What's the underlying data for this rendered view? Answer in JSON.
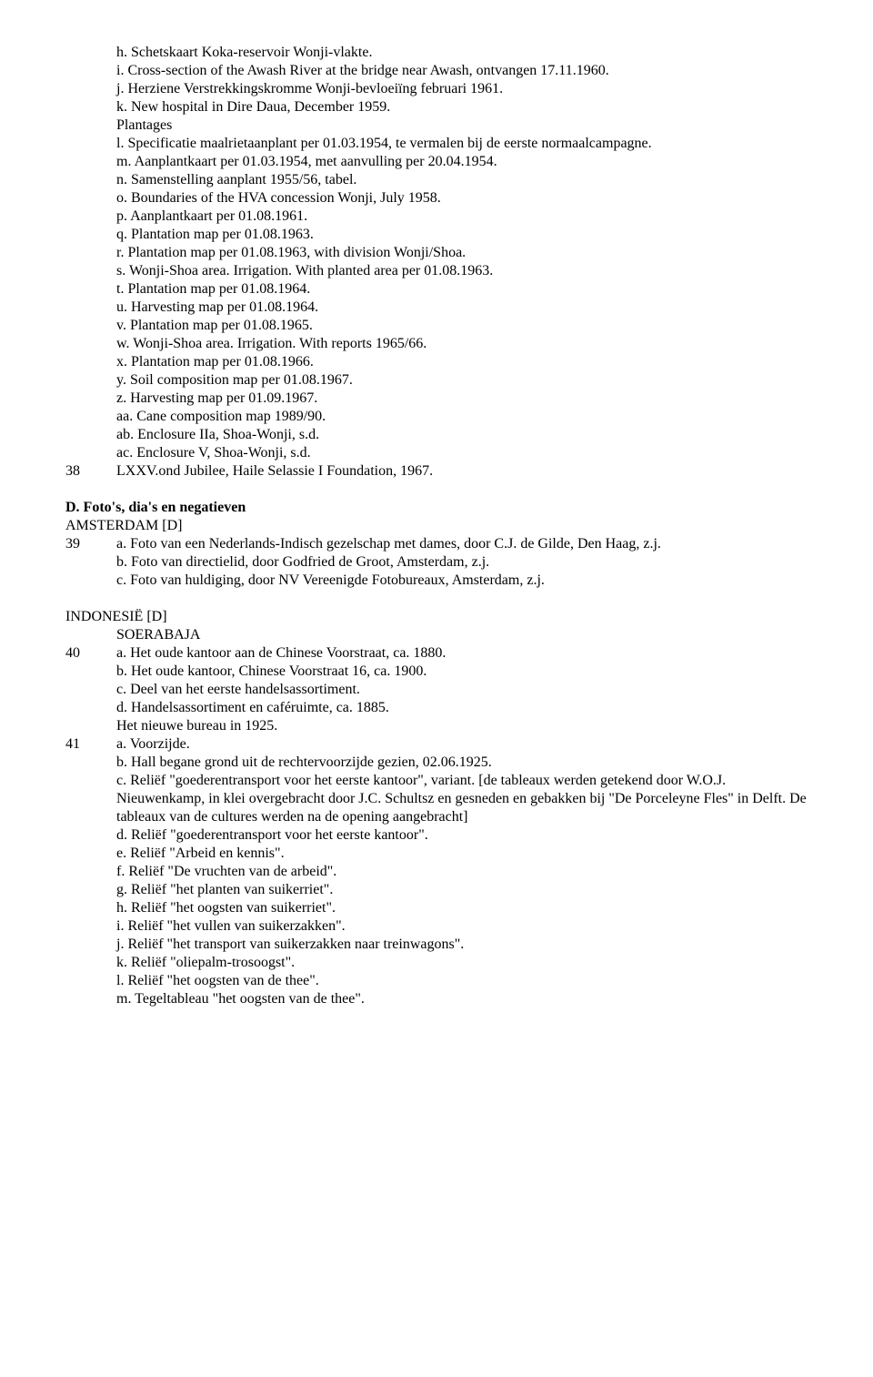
{
  "block1": {
    "items": [
      "h. Schetskaart Koka-reservoir Wonji-vlakte.",
      "i. Cross-section of the Awash River at the bridge near Awash, ontvangen 17.11.1960.",
      "j. Herziene Verstrekkingskromme Wonji-bevloeiïng februari 1961.",
      "k. New hospital in Dire Daua, December 1959.",
      "Plantages",
      "l. Specificatie maalrietaanplant per 01.03.1954, te vermalen bij de eerste normaalcampagne.",
      "m. Aanplantkaart per 01.03.1954, met aanvulling per 20.04.1954.",
      "n. Samenstelling aanplant 1955/56, tabel.",
      "o. Boundaries of the HVA concession Wonji, July 1958.",
      "p. Aanplantkaart per 01.08.1961.",
      "q. Plantation map per 01.08.1963.",
      "r. Plantation map per 01.08.1963, with division Wonji/Shoa.",
      "s. Wonji-Shoa area. Irrigation. With planted area per 01.08.1963.",
      "t. Plantation map per 01.08.1964.",
      "u. Harvesting map per 01.08.1964.",
      "v. Plantation map per 01.08.1965.",
      "w. Wonji-Shoa area. Irrigation. With reports 1965/66.",
      "x. Plantation map per 01.08.1966.",
      "y. Soil composition map per 01.08.1967.",
      "z. Harvesting map per 01.09.1967.",
      "aa. Cane composition map 1989/90.",
      "ab. Enclosure IIa, Shoa-Wonji, s.d.",
      "ac. Enclosure V, Shoa-Wonji, s.d."
    ],
    "lastNum": "38",
    "lastText": "LXXV.ond Jubilee, Haile Selassie I Foundation, 1967."
  },
  "sectionD": {
    "heading": "D. Foto's, dia's  en negatieven",
    "sub1": "AMSTERDAM [D]",
    "num39": "39",
    "items39": [
      "a. Foto van een Nederlands-Indisch gezelschap met dames, door C.J. de Gilde, Den Haag, z.j.",
      "b. Foto van directielid, door Godfried de Groot, Amsterdam, z.j.",
      "c. Foto van huldiging, door NV Vereenigde Fotobureaux, Amsterdam, z.j."
    ]
  },
  "indo": {
    "heading": "INDONESIË [D]",
    "sub": "SOERABAJA",
    "num40": "40",
    "items40": [
      "a. Het oude kantoor aan de Chinese Voorstraat, ca. 1880.",
      "b. Het oude kantoor, Chinese Voorstraat 16, ca. 1900.",
      "c. Deel van het eerste handelsassortiment.",
      "d. Handelsassortiment en caféruimte, ca. 1885.",
      "Het nieuwe bureau in 1925."
    ],
    "num41": "41",
    "items41": [
      "a. Voorzijde.",
      "b. Hall begane grond uit de rechtervoorzijde gezien, 02.06.1925.",
      "c. Reliëf \"goederentransport voor het eerste kantoor\", variant. [de tableaux werden getekend door W.O.J. Nieuwenkamp, in klei overgebracht door J.C. Schultsz en gesneden en gebakken bij \"De Porceleyne Fles\" in Delft. De tableaux van de cultures werden na de opening aangebracht]",
      "d. Reliëf \"goederentransport voor het eerste kantoor\".",
      "e. Reliëf \"Arbeid en kennis\".",
      "f. Reliëf \"De vruchten van de arbeid\".",
      "g. Reliëf \"het planten van suikerriet\".",
      "h. Reliëf \"het oogsten van suikerriet\".",
      "i. Reliëf \"het vullen van suikerzakken\".",
      "j. Reliëf \"het transport van suikerzakken naar treinwagons\".",
      "k. Reliëf \"oliepalm-trosoogst\".",
      "l. Reliëf \"het oogsten van de thee\".",
      "m. Tegeltableau \"het oogsten van de thee\"."
    ]
  }
}
